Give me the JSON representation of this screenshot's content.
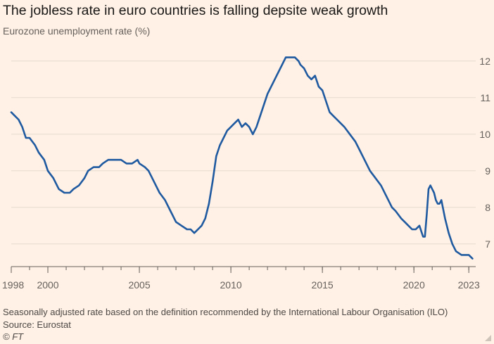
{
  "chart_data": {
    "type": "line",
    "title": "The jobless rate in euro countries is falling depsite weak growth",
    "subtitle": "Eurozone unemployment rate (%)",
    "xlabel": "",
    "ylabel": "",
    "xlim": [
      1998,
      2023.3
    ],
    "ylim": [
      6.4,
      12.4
    ],
    "x_ticks": [
      "1998",
      "2000",
      "2005",
      "2010",
      "2015",
      "2020",
      "2023"
    ],
    "y_ticks": [
      "7",
      "8",
      "9",
      "10",
      "11",
      "12"
    ],
    "grid": "horizontal",
    "series": [
      {
        "name": "Eurozone unemployment rate",
        "color": "#1f5aa0",
        "x": [
          1998.0,
          1998.2,
          1998.4,
          1998.6,
          1998.8,
          1999.0,
          1999.3,
          1999.5,
          1999.8,
          2000.0,
          2000.3,
          2000.6,
          2000.9,
          2001.2,
          2001.4,
          2001.7,
          2002.0,
          2002.2,
          2002.5,
          2002.8,
          2003.0,
          2003.3,
          2003.5,
          2003.8,
          2004.0,
          2004.3,
          2004.6,
          2004.9,
          2005.0,
          2005.3,
          2005.5,
          2005.7,
          2005.9,
          2006.1,
          2006.4,
          2006.7,
          2007.0,
          2007.3,
          2007.6,
          2007.8,
          2008.0,
          2008.2,
          2008.4,
          2008.6,
          2008.8,
          2009.0,
          2009.2,
          2009.4,
          2009.6,
          2009.8,
          2010.0,
          2010.2,
          2010.4,
          2010.6,
          2010.8,
          2011.0,
          2011.2,
          2011.4,
          2011.6,
          2011.8,
          2012.0,
          2012.2,
          2012.5,
          2012.8,
          2013.0,
          2013.2,
          2013.5,
          2013.7,
          2013.8,
          2014.0,
          2014.2,
          2014.4,
          2014.6,
          2014.8,
          2015.0,
          2015.2,
          2015.4,
          2015.6,
          2015.8,
          2016.0,
          2016.2,
          2016.5,
          2016.8,
          2017.0,
          2017.3,
          2017.6,
          2017.9,
          2018.2,
          2018.5,
          2018.8,
          2019.0,
          2019.3,
          2019.5,
          2019.7,
          2019.9,
          2020.1,
          2020.3,
          2020.5,
          2020.6,
          2020.7,
          2020.8,
          2020.9,
          2021.0,
          2021.1,
          2021.2,
          2021.3,
          2021.4,
          2021.5,
          2021.7,
          2021.9,
          2022.1,
          2022.3,
          2022.6,
          2022.9,
          2023.0,
          2023.2
        ],
        "y": [
          10.6,
          10.5,
          10.4,
          10.2,
          9.9,
          9.9,
          9.7,
          9.5,
          9.3,
          9.0,
          8.8,
          8.5,
          8.4,
          8.4,
          8.5,
          8.6,
          8.8,
          9.0,
          9.1,
          9.1,
          9.2,
          9.3,
          9.3,
          9.3,
          9.3,
          9.2,
          9.2,
          9.3,
          9.2,
          9.1,
          9.0,
          8.8,
          8.6,
          8.4,
          8.2,
          7.9,
          7.6,
          7.5,
          7.4,
          7.4,
          7.3,
          7.4,
          7.5,
          7.7,
          8.1,
          8.7,
          9.4,
          9.7,
          9.9,
          10.1,
          10.2,
          10.3,
          10.4,
          10.2,
          10.3,
          10.2,
          10.0,
          10.2,
          10.5,
          10.8,
          11.1,
          11.3,
          11.6,
          11.9,
          12.1,
          12.1,
          12.1,
          12.0,
          11.9,
          11.8,
          11.6,
          11.5,
          11.6,
          11.3,
          11.2,
          10.9,
          10.6,
          10.5,
          10.4,
          10.3,
          10.2,
          10.0,
          9.8,
          9.6,
          9.3,
          9.0,
          8.8,
          8.6,
          8.3,
          8.0,
          7.9,
          7.7,
          7.6,
          7.5,
          7.4,
          7.4,
          7.5,
          7.2,
          7.2,
          7.8,
          8.5,
          8.6,
          8.5,
          8.4,
          8.2,
          8.1,
          8.1,
          8.2,
          7.7,
          7.3,
          7.0,
          6.8,
          6.7,
          6.7,
          6.7,
          6.6
        ]
      }
    ]
  },
  "footer": {
    "note": "Seasonally adjusted rate based on the definition recommended by the International Labour Organisation (ILO)",
    "source": "Source: Eurostat",
    "credit": "© FT"
  }
}
